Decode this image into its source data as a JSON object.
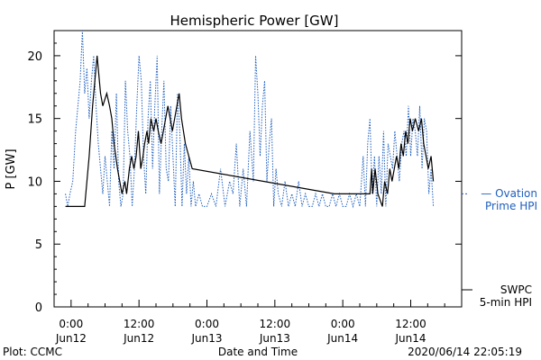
{
  "chart_data": {
    "type": "line",
    "title": "Hemispheric Power [GW]",
    "ylabel": "P [GW]",
    "xlabel": "Date and Time",
    "ylim": [
      0,
      22
    ],
    "xlim_hours": [
      -3,
      69
    ],
    "y_ticks": [
      0,
      5,
      10,
      15,
      20
    ],
    "x_ticks": [
      {
        "hour": 0,
        "time": "0:00",
        "date": "Jun12"
      },
      {
        "hour": 12,
        "time": "12:00",
        "date": "Jun12"
      },
      {
        "hour": 24,
        "time": "0:00",
        "date": "Jun13"
      },
      {
        "hour": 36,
        "time": "12:00",
        "date": "Jun13"
      },
      {
        "hour": 48,
        "time": "0:00",
        "date": "Jun14"
      },
      {
        "hour": 60,
        "time": "12:00",
        "date": "Jun14"
      }
    ],
    "series": [
      {
        "name_lines": [
          "SWPC",
          "5-min HPI"
        ],
        "color": "#000000",
        "style": "solid",
        "points": [
          [
            -1,
            8
          ],
          [
            2.4,
            8
          ],
          [
            3.2,
            12
          ],
          [
            3.8,
            16
          ],
          [
            4.6,
            20
          ],
          [
            5.2,
            17
          ],
          [
            5.6,
            16
          ],
          [
            6.3,
            17
          ],
          [
            6.8,
            16
          ],
          [
            7.2,
            15
          ],
          [
            7.6,
            13
          ],
          [
            8.2,
            11
          ],
          [
            8.6,
            10
          ],
          [
            9,
            9
          ],
          [
            9.5,
            10
          ],
          [
            9.8,
            9
          ],
          [
            10.3,
            11
          ],
          [
            10.7,
            12
          ],
          [
            11.1,
            11
          ],
          [
            11.5,
            12
          ],
          [
            11.9,
            14
          ],
          [
            12.3,
            11
          ],
          [
            12.7,
            12
          ],
          [
            13,
            13
          ],
          [
            13.4,
            14
          ],
          [
            13.7,
            13
          ],
          [
            14.1,
            15
          ],
          [
            14.6,
            14
          ],
          [
            15,
            15
          ],
          [
            15.4,
            14
          ],
          [
            15.9,
            13
          ],
          [
            16.3,
            14
          ],
          [
            16.7,
            15
          ],
          [
            17.1,
            16
          ],
          [
            17.5,
            15
          ],
          [
            17.9,
            14
          ],
          [
            18.3,
            15
          ],
          [
            18.7,
            16
          ],
          [
            19.1,
            17
          ],
          [
            19.5,
            15
          ],
          [
            20.2,
            13
          ],
          [
            21.4,
            11
          ],
          [
            46.5,
            9
          ],
          [
            52.8,
            9
          ],
          [
            53.1,
            11
          ],
          [
            53.3,
            9
          ],
          [
            53.7,
            11
          ],
          [
            54.2,
            9
          ],
          [
            55,
            8
          ],
          [
            55.4,
            10
          ],
          [
            55.9,
            9
          ],
          [
            56.3,
            11
          ],
          [
            56.7,
            10
          ],
          [
            57.1,
            11
          ],
          [
            57.5,
            12
          ],
          [
            57.9,
            11
          ],
          [
            58.3,
            13
          ],
          [
            58.7,
            12
          ],
          [
            59.1,
            14
          ],
          [
            59.5,
            13
          ],
          [
            59.9,
            15
          ],
          [
            60.3,
            14
          ],
          [
            60.8,
            15
          ],
          [
            61.4,
            14
          ],
          [
            61.9,
            15
          ],
          [
            62.3,
            13
          ],
          [
            62.7,
            12
          ],
          [
            63.1,
            11
          ],
          [
            63.6,
            12
          ],
          [
            64,
            10
          ]
        ]
      },
      {
        "name_lines": [
          "— Ovation",
          "Prime HPI"
        ],
        "color": "#1f5fbf",
        "style": "dotted",
        "points": [
          [
            -1,
            9
          ],
          [
            -0.6,
            8
          ],
          [
            -0.2,
            9
          ],
          [
            0.3,
            10
          ],
          [
            0.8,
            14
          ],
          [
            1.2,
            16
          ],
          [
            1.6,
            18
          ],
          [
            2,
            22
          ],
          [
            2.4,
            17
          ],
          [
            2.8,
            19
          ],
          [
            3.2,
            15
          ],
          [
            3.6,
            18
          ],
          [
            4,
            20
          ],
          [
            4.4,
            16
          ],
          [
            4.8,
            13
          ],
          [
            5.2,
            11
          ],
          [
            5.6,
            9
          ],
          [
            6,
            12
          ],
          [
            6.4,
            10
          ],
          [
            6.8,
            8
          ],
          [
            7.2,
            14
          ],
          [
            7.6,
            11
          ],
          [
            8,
            17
          ],
          [
            8.4,
            10
          ],
          [
            8.8,
            8
          ],
          [
            9.2,
            9
          ],
          [
            9.6,
            18
          ],
          [
            10,
            14
          ],
          [
            10.4,
            12
          ],
          [
            10.8,
            8
          ],
          [
            11.2,
            11
          ],
          [
            11.6,
            16
          ],
          [
            12,
            20
          ],
          [
            12.4,
            18
          ],
          [
            12.8,
            12
          ],
          [
            13.2,
            9
          ],
          [
            13.6,
            15
          ],
          [
            14,
            18
          ],
          [
            14.4,
            11
          ],
          [
            14.8,
            16
          ],
          [
            15.2,
            20
          ],
          [
            15.6,
            9
          ],
          [
            16,
            14
          ],
          [
            16.4,
            18
          ],
          [
            16.8,
            11
          ],
          [
            17.2,
            10
          ],
          [
            17.6,
            16
          ],
          [
            18,
            12
          ],
          [
            18.4,
            8
          ],
          [
            18.8,
            17
          ],
          [
            19.2,
            14
          ],
          [
            19.6,
            8
          ],
          [
            20,
            13
          ],
          [
            20.4,
            9
          ],
          [
            20.8,
            12
          ],
          [
            21.2,
            8
          ],
          [
            21.6,
            10
          ],
          [
            22,
            8
          ],
          [
            22.6,
            9
          ],
          [
            23.2,
            8
          ],
          [
            24,
            8
          ],
          [
            24.8,
            9
          ],
          [
            25.6,
            8
          ],
          [
            26.4,
            11
          ],
          [
            27.2,
            8
          ],
          [
            28,
            10
          ],
          [
            28.6,
            9
          ],
          [
            29.2,
            13
          ],
          [
            29.8,
            8
          ],
          [
            30.4,
            11
          ],
          [
            31,
            8
          ],
          [
            31.6,
            14
          ],
          [
            32.2,
            10
          ],
          [
            32.6,
            20
          ],
          [
            33,
            17
          ],
          [
            33.4,
            12
          ],
          [
            33.8,
            16
          ],
          [
            34.2,
            18
          ],
          [
            34.6,
            10
          ],
          [
            35,
            13
          ],
          [
            35.4,
            15
          ],
          [
            35.8,
            8
          ],
          [
            36.2,
            11
          ],
          [
            36.6,
            9
          ],
          [
            37.2,
            8
          ],
          [
            37.8,
            10
          ],
          [
            38.4,
            8
          ],
          [
            39,
            9
          ],
          [
            39.6,
            8
          ],
          [
            40.2,
            10
          ],
          [
            40.8,
            8
          ],
          [
            41.4,
            9
          ],
          [
            42,
            8
          ],
          [
            42.6,
            8
          ],
          [
            43.2,
            9
          ],
          [
            43.8,
            8
          ],
          [
            44.4,
            9
          ],
          [
            45,
            8
          ],
          [
            45.6,
            8
          ],
          [
            46.2,
            9
          ],
          [
            46.8,
            8
          ],
          [
            47.4,
            9
          ],
          [
            48,
            8
          ],
          [
            48.6,
            8
          ],
          [
            49.2,
            9
          ],
          [
            49.8,
            8
          ],
          [
            50.4,
            9
          ],
          [
            51,
            8
          ],
          [
            51.6,
            12
          ],
          [
            52,
            8
          ],
          [
            52.4,
            13
          ],
          [
            52.8,
            15
          ],
          [
            53.2,
            9
          ],
          [
            53.6,
            12
          ],
          [
            54,
            8
          ],
          [
            54.4,
            12
          ],
          [
            54.8,
            9
          ],
          [
            55.2,
            14
          ],
          [
            55.6,
            8
          ],
          [
            56,
            13
          ],
          [
            56.4,
            12
          ],
          [
            56.8,
            11
          ],
          [
            57.2,
            14
          ],
          [
            57.6,
            12
          ],
          [
            58,
            10
          ],
          [
            58.4,
            13
          ],
          [
            58.8,
            14
          ],
          [
            59.2,
            12
          ],
          [
            59.6,
            16
          ],
          [
            60,
            12
          ],
          [
            60.4,
            15
          ],
          [
            60.8,
            14
          ],
          [
            61.2,
            12
          ],
          [
            61.6,
            16
          ],
          [
            62,
            11
          ],
          [
            62.4,
            15
          ],
          [
            62.8,
            14
          ],
          [
            63.2,
            9
          ],
          [
            63.6,
            11
          ],
          [
            64,
            8
          ]
        ]
      }
    ]
  },
  "footer": {
    "plot_credit": "Plot: CCMC",
    "timestamp": "2020/06/14 22:05:19"
  }
}
